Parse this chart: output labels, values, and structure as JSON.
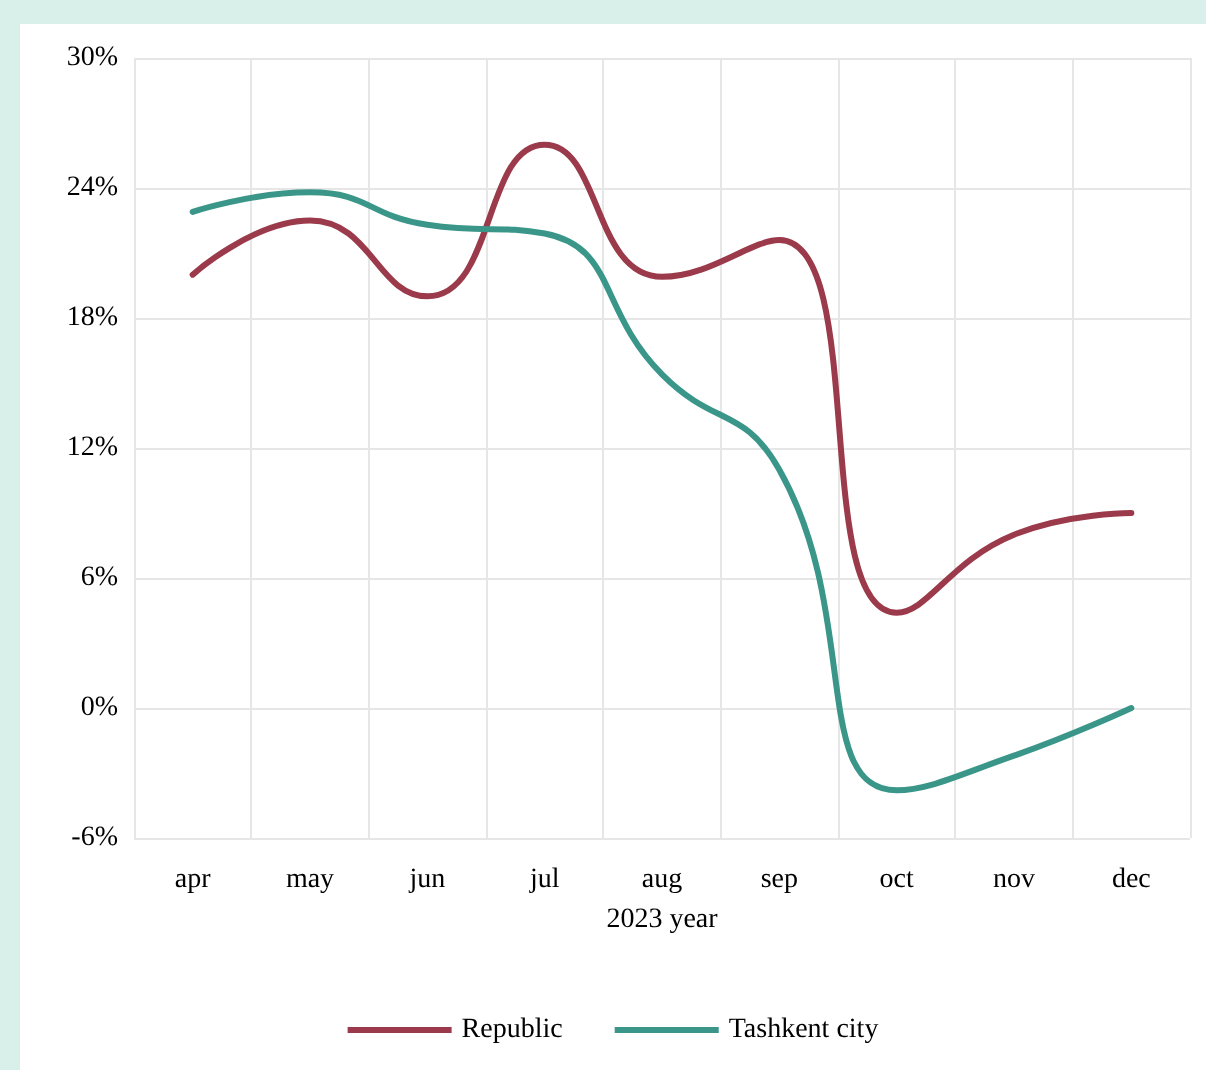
{
  "chart_data": {
    "type": "line",
    "xlabel": "2023 year",
    "categories": [
      "apr",
      "may",
      "jun",
      "jul",
      "aug",
      "sep",
      "oct",
      "nov",
      "dec"
    ],
    "series": [
      {
        "name": "Republic",
        "color": "#9b3a4a",
        "values": [
          20.0,
          22.5,
          19.0,
          26.0,
          19.9,
          21.6,
          4.4,
          8.0,
          9.0
        ]
      },
      {
        "name": "Tashkent city",
        "color": "#3a9688",
        "values": [
          22.9,
          23.8,
          22.3,
          21.9,
          15.4,
          11.0,
          -3.8,
          -2.2,
          0.0
        ]
      }
    ],
    "ylim": [
      -6,
      30
    ],
    "yticks": [
      {
        "value": -6,
        "label": "-6%"
      },
      {
        "value": 0,
        "label": "0%"
      },
      {
        "value": 6,
        "label": "6%"
      },
      {
        "value": 12,
        "label": "12%"
      },
      {
        "value": 18,
        "label": "18%"
      },
      {
        "value": 24,
        "label": "24%"
      },
      {
        "value": 30,
        "label": "30%"
      }
    ],
    "grid": true,
    "legend": "bottom",
    "marker": "none",
    "line_style": "solid"
  }
}
